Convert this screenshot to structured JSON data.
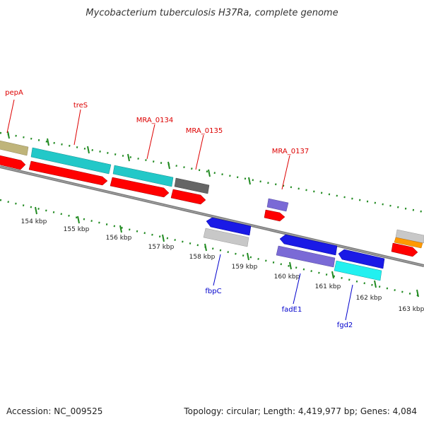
{
  "title": "Mycobacterium tuberculosis H37Ra, complete genome",
  "footer": {
    "accession": "Accession: NC_009525",
    "topology": "Topology: circular; Length: 4,419,977 bp; Genes: 4,084"
  },
  "colors": {
    "track_dot": "#228B22",
    "backbone": "#777777",
    "label_red": "#dd0000",
    "label_blue": "#0000cc"
  },
  "scale": {
    "unit": "kbp",
    "ticks": [
      "154 kbp",
      "155 kbp",
      "156 kbp",
      "157 kbp",
      "158 kbp",
      "159 kbp",
      "160 kbp",
      "161 kbp",
      "162 kbp",
      "163 kbp"
    ]
  },
  "gene_labels": {
    "pepA": "pepA",
    "treS": "treS",
    "MRA_0134": "MRA_0134",
    "MRA_0135": "MRA_0135",
    "MRA_0137": "MRA_0137",
    "fbpC": "fbpC",
    "fadE1": "fadE1",
    "fgd2": "fgd2"
  },
  "feature_colors": {
    "cds": "#ff0000",
    "olive": "#bfb47a",
    "teal": "#22c8c8",
    "grey_dark": "#666666",
    "lavender": "#7a6ad6",
    "blue": "#1a1ae6",
    "light_grey": "#c8c8c8",
    "cyan": "#22f0f0",
    "orange": "#ff9900"
  }
}
